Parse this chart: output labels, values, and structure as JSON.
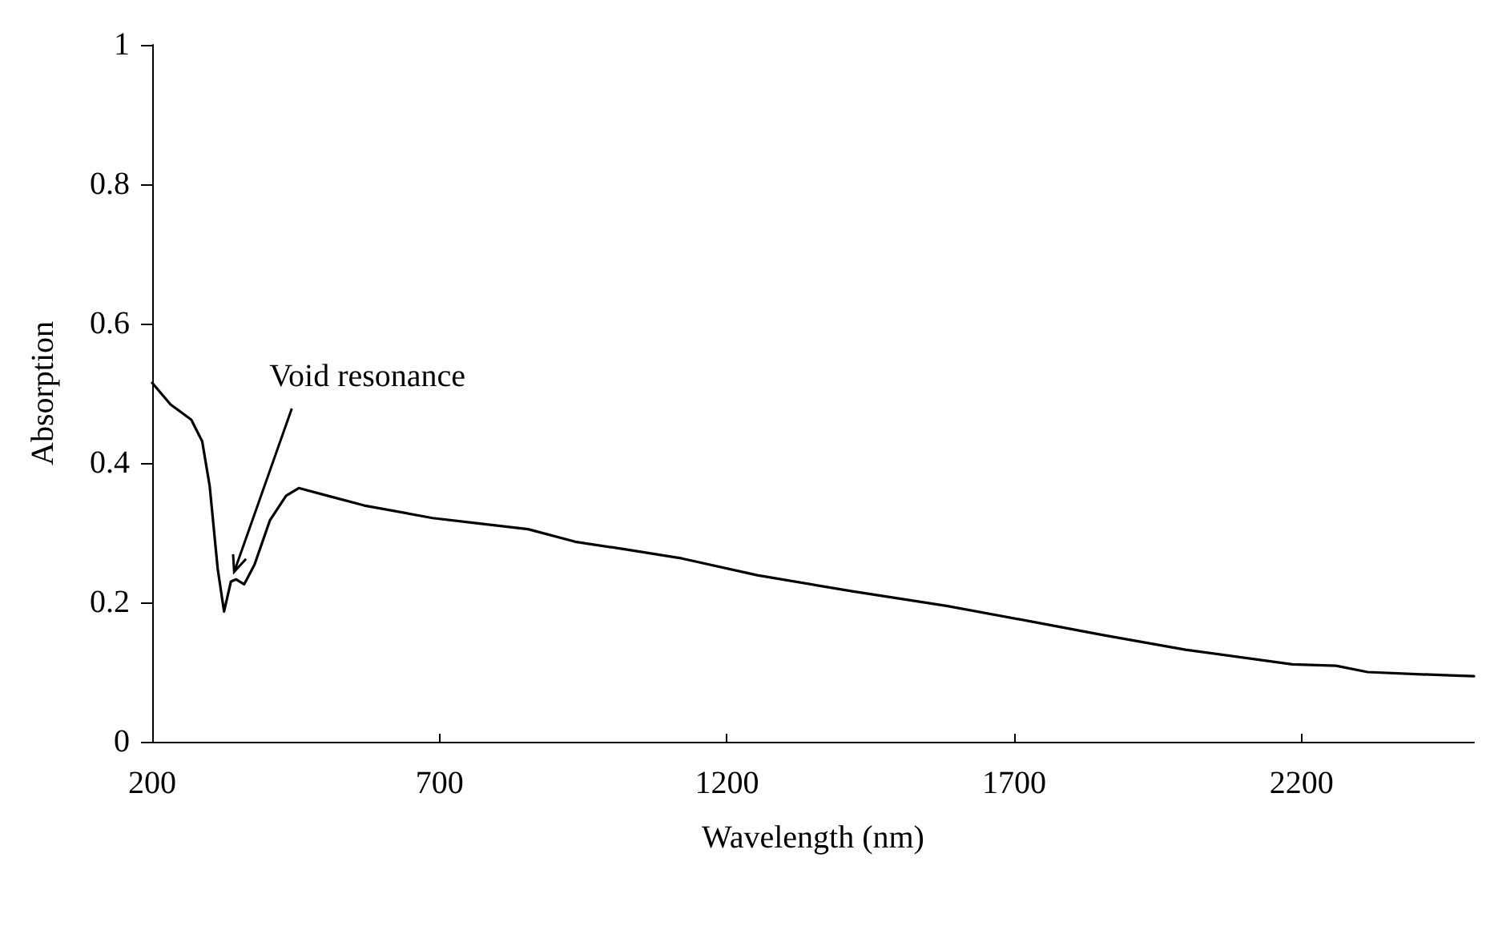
{
  "chart_data": {
    "type": "line",
    "xlabel": "Wavelength (nm)",
    "ylabel": "Absorption",
    "xlim": [
      200,
      2500
    ],
    "xticks": [
      200,
      700,
      1200,
      1700,
      2200
    ],
    "ylim": [
      0,
      1
    ],
    "yticks": [
      0,
      0.2,
      0.4,
      0.6,
      0.8,
      1
    ],
    "grid": false,
    "marker": "none",
    "line_style": "solid",
    "annotations": [
      {
        "text": "Void resonance",
        "x": 337,
        "y": 0.23
      }
    ],
    "series": [
      {
        "color": "#000000",
        "x": [
          200,
          232,
          268,
          287,
          300,
          314,
          325,
          337,
          346,
          360,
          378,
          405,
          433,
          455,
          505,
          569,
          688,
          761,
          854,
          936,
          1024,
          1122,
          1253,
          1418,
          1582,
          1746,
          1855,
          1998,
          2184,
          2260,
          2315,
          2400,
          2468,
          2500
        ],
        "values": [
          0.515,
          0.484,
          0.462,
          0.431,
          0.367,
          0.248,
          0.187,
          0.23,
          0.233,
          0.226,
          0.254,
          0.318,
          0.353,
          0.364,
          0.353,
          0.339,
          0.321,
          0.314,
          0.305,
          0.287,
          0.276,
          0.263,
          0.239,
          0.216,
          0.195,
          0.17,
          0.153,
          0.132,
          0.111,
          0.109,
          0.1,
          0.097,
          0.095,
          0.094
        ]
      }
    ]
  }
}
